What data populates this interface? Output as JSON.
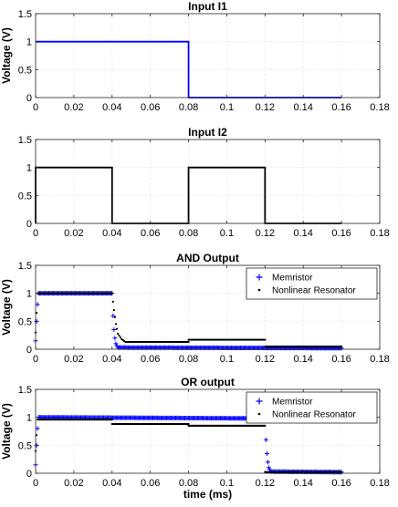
{
  "chart_data": [
    {
      "type": "line",
      "title": "Input I1",
      "ylabel": "Voltage (V)",
      "xlabel": "",
      "xlim": [
        0,
        0.18
      ],
      "ylim": [
        0,
        1.5
      ],
      "xticks": [
        "0",
        "0.02",
        "0.04",
        "0.06",
        "0.08",
        "0.1",
        "0.12",
        "0.14",
        "0.16",
        "0.18"
      ],
      "yticks": [
        "0",
        "0.5",
        "1",
        "1.5"
      ],
      "grid": true,
      "legend": null,
      "series": [
        {
          "color": "#0000ff",
          "style": "line",
          "x": [
            0,
            0.08,
            0.08,
            0.16
          ],
          "y": [
            1,
            1,
            0,
            0
          ]
        }
      ]
    },
    {
      "type": "line",
      "title": "Input I2",
      "ylabel": "",
      "xlabel": "",
      "xlim": [
        0,
        0.18
      ],
      "ylim": [
        0,
        1.5
      ],
      "xticks": [
        "0",
        "0.02",
        "0.04",
        "0.06",
        "0.08",
        "0.1",
        "0.12",
        "0.14",
        "0.16",
        "0.18"
      ],
      "yticks": [
        "0",
        "0.5",
        "1",
        "1.5"
      ],
      "grid": true,
      "legend": null,
      "series": [
        {
          "color": "#000000",
          "style": "line",
          "x": [
            0,
            0,
            0.04,
            0.04,
            0.08,
            0.08,
            0.12,
            0.12,
            0.16
          ],
          "y": [
            0,
            1,
            1,
            0,
            0,
            1,
            1,
            0,
            0
          ]
        }
      ]
    },
    {
      "type": "scatter",
      "title": "AND Output",
      "ylabel": "Voltage (V)",
      "xlabel": "",
      "xlim": [
        0,
        0.18
      ],
      "ylim": [
        0,
        1.5
      ],
      "xticks": [
        "0",
        "0.02",
        "0.04",
        "0.06",
        "0.08",
        "0.1",
        "0.12",
        "0.14",
        "0.16",
        "0.18"
      ],
      "yticks": [
        "0",
        "0.5",
        "1",
        "1.5"
      ],
      "grid": true,
      "legend": "top-right",
      "series": [
        {
          "name": "Memristor",
          "color": "#0000ff",
          "marker": "plus",
          "x": [
            0,
            0.0005,
            0.001,
            0.0015,
            0.04,
            0.0405,
            0.041,
            0.0415,
            0.042,
            0.043,
            0.16
          ],
          "y": [
            0.15,
            0.5,
            0.8,
            1.0,
            1.0,
            0.6,
            0.35,
            0.2,
            0.1,
            0.03,
            0.02
          ]
        },
        {
          "name": "Nonlinear Resonator",
          "color": "#000000",
          "marker": "dot",
          "x": [
            0,
            0.001,
            0.04,
            0.041,
            0.042,
            0.043,
            0.045,
            0.047,
            0.08,
            0.08,
            0.12,
            0.12,
            0.16
          ],
          "y": [
            0.3,
            1.0,
            1.0,
            0.7,
            0.45,
            0.28,
            0.18,
            0.13,
            0.13,
            0.17,
            0.17,
            0.05,
            0.05
          ]
        }
      ]
    },
    {
      "type": "scatter",
      "title": "OR output",
      "ylabel": "Voltage (V)",
      "xlabel": "time (ms)",
      "xlim": [
        0,
        0.18
      ],
      "ylim": [
        0,
        1.5
      ],
      "xticks": [
        "0",
        "0.02",
        "0.04",
        "0.06",
        "0.08",
        "0.1",
        "0.12",
        "0.14",
        "0.16",
        "0.18"
      ],
      "yticks": [
        "0",
        "0.5",
        "1",
        "1.5"
      ],
      "grid": true,
      "legend": "top-right",
      "series": [
        {
          "name": "Memristor",
          "color": "#0000ff",
          "marker": "plus",
          "x": [
            0,
            0.0005,
            0.001,
            0.0015,
            0.12,
            0.1205,
            0.121,
            0.1215,
            0.122,
            0.123,
            0.16
          ],
          "y": [
            0.15,
            0.5,
            0.8,
            1.0,
            0.98,
            0.6,
            0.35,
            0.2,
            0.1,
            0.03,
            0.02
          ]
        },
        {
          "name": "Nonlinear Resonator",
          "color": "#000000",
          "marker": "dot",
          "x": [
            0,
            0.001,
            0.04,
            0.04,
            0.08,
            0.08,
            0.12,
            0.12,
            0.16
          ],
          "y": [
            0.4,
            0.96,
            0.96,
            0.88,
            0.88,
            0.85,
            0.85,
            0.02,
            0.02
          ]
        }
      ]
    }
  ]
}
